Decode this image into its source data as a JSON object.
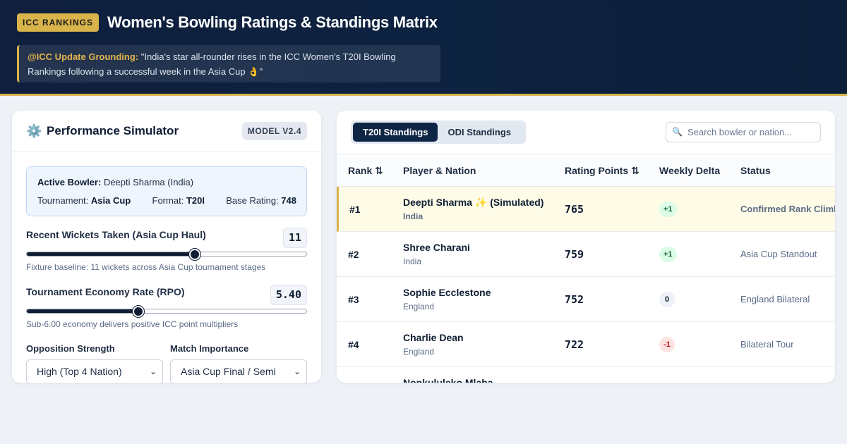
{
  "header": {
    "badge": "ICC RANKINGS",
    "title": "Women's Bowling Ratings & Standings Matrix",
    "notice_handle": "@ICC Update Grounding:",
    "notice_text": " \"India's star all-rounder rises in the ICC Women's T20I Bowling Rankings following a successful week in the Asia Cup 👌\""
  },
  "simulator": {
    "icon": "gear-icon",
    "title": "Performance Simulator",
    "model_badge": "MODEL V2.4",
    "bowler_label": "Active Bowler:",
    "bowler_name": "Deepti Sharma (India)",
    "tournament_label": "Tournament:",
    "tournament": "Asia Cup",
    "format_label": "Format:",
    "format": "T20I",
    "base_rating_label": "Base Rating:",
    "base_rating": "748",
    "wickets": {
      "label": "Recent Wickets Taken (Asia Cup Haul)",
      "value": "11",
      "fraction": 0.6,
      "hint": "Fixture baseline: 11 wickets across Asia Cup tournament stages"
    },
    "economy": {
      "label": "Tournament Economy Rate (RPO)",
      "value": "5.40",
      "fraction": 0.4,
      "hint": "Sub-6.00 economy delivers positive ICC point multipliers"
    },
    "opposition": {
      "label": "Opposition Strength",
      "selected": "High (Top 4 Nation)"
    },
    "importance": {
      "label": "Match Importance",
      "selected": "Asia Cup Final / Semi"
    }
  },
  "standings": {
    "tabs": [
      {
        "label": "T20I Standings",
        "active": true
      },
      {
        "label": "ODI Standings",
        "active": false
      }
    ],
    "search_placeholder": "Search bowler or nation...",
    "columns": [
      "Rank ⇅",
      "Player & Nation",
      "Rating Points ⇅",
      "Weekly Delta",
      "Status"
    ],
    "rows": [
      {
        "rank": "#1",
        "player": "Deepti Sharma ✨ (Simulated)",
        "nation": "India",
        "rating": "765",
        "delta": "+1",
        "trend": "up",
        "status": "Confirmed Rank Climb"
      },
      {
        "rank": "#2",
        "player": "Shree Charani",
        "nation": "India",
        "rating": "759",
        "delta": "+1",
        "trend": "up",
        "status": "Asia Cup Standout"
      },
      {
        "rank": "#3",
        "player": "Sophie Ecclestone",
        "nation": "England",
        "rating": "752",
        "delta": "0",
        "trend": "flat",
        "status": "England Bilateral"
      },
      {
        "rank": "#4",
        "player": "Charlie Dean",
        "nation": "England",
        "rating": "722",
        "delta": "-1",
        "trend": "down",
        "status": "Bilateral Tour"
      },
      {
        "rank": "",
        "player": "Nonkululeko Mlaba",
        "nation": "",
        "rating": "",
        "delta": "",
        "trend": "",
        "status": ""
      }
    ]
  },
  "colors": {
    "accent_gold": "#d9b44a",
    "navy": "#0f2545",
    "up": "#166534",
    "down": "#b91c1c"
  }
}
